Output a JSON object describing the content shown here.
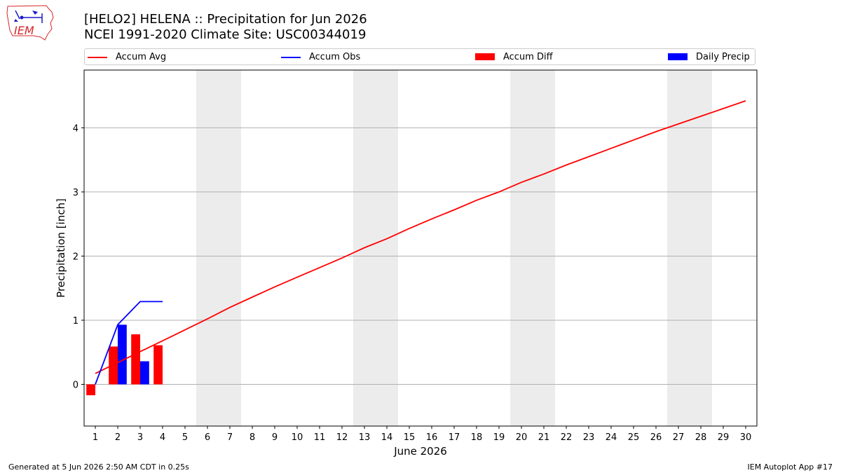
{
  "header": {
    "title_line_1": "[HELO2] HELENA :: Precipitation for Jun 2026",
    "title_line_2": "NCEI 1991-2020 Climate Site: USC00344019"
  },
  "logo": {
    "text": "IEM",
    "color": "#d62728"
  },
  "footer": {
    "generated": "Generated at 5 Jun 2026 2:50 AM CDT in 0.25s",
    "app": "IEM Autoplot App #17"
  },
  "chart_data": {
    "type": "line",
    "xlabel": "June 2026",
    "ylabel": "Precipitation [inch]",
    "x_categories": [
      "1",
      "2",
      "3",
      "4",
      "5",
      "6",
      "7",
      "8",
      "9",
      "10",
      "11",
      "12",
      "13",
      "14",
      "15",
      "16",
      "17",
      "18",
      "19",
      "20",
      "21",
      "22",
      "23",
      "24",
      "25",
      "26",
      "27",
      "28",
      "29",
      "30"
    ],
    "xlim": [
      0.5,
      30.5
    ],
    "ylim": [
      -0.65,
      4.9
    ],
    "yticks": [
      0,
      1,
      2,
      3,
      4
    ],
    "grid": "horizontal",
    "legend": {
      "placement": "top"
    },
    "weekend_shading_days": [
      [
        6,
        7
      ],
      [
        13,
        14
      ],
      [
        20,
        21
      ],
      [
        27,
        28
      ]
    ],
    "series": [
      {
        "name": "Accum Avg",
        "type": "line",
        "color": "#ff0000",
        "days": [
          1,
          2,
          3,
          4,
          5,
          6,
          7,
          8,
          9,
          10,
          11,
          12,
          13,
          14,
          15,
          16,
          17,
          18,
          19,
          20,
          21,
          22,
          23,
          24,
          25,
          26,
          27,
          28,
          29,
          30
        ],
        "values": [
          0.17,
          0.34,
          0.51,
          0.68,
          0.85,
          1.02,
          1.2,
          1.36,
          1.52,
          1.67,
          1.82,
          1.97,
          2.13,
          2.27,
          2.43,
          2.58,
          2.72,
          2.87,
          3.0,
          3.15,
          3.28,
          3.42,
          3.55,
          3.68,
          3.81,
          3.94,
          4.06,
          4.18,
          4.3,
          4.42
        ]
      },
      {
        "name": "Accum Obs",
        "type": "line",
        "color": "#0000ff",
        "days": [
          1,
          2,
          3,
          4
        ],
        "values": [
          0.0,
          0.93,
          1.29,
          1.29
        ]
      },
      {
        "name": "Accum Diff",
        "type": "bar",
        "color": "#ff0000",
        "days": [
          1,
          2,
          3,
          4
        ],
        "values": [
          -0.17,
          0.59,
          0.78,
          0.61
        ]
      },
      {
        "name": "Daily Precip",
        "type": "bar",
        "color": "#0000ff",
        "days": [
          2,
          3
        ],
        "values": [
          0.93,
          0.36
        ]
      }
    ]
  }
}
